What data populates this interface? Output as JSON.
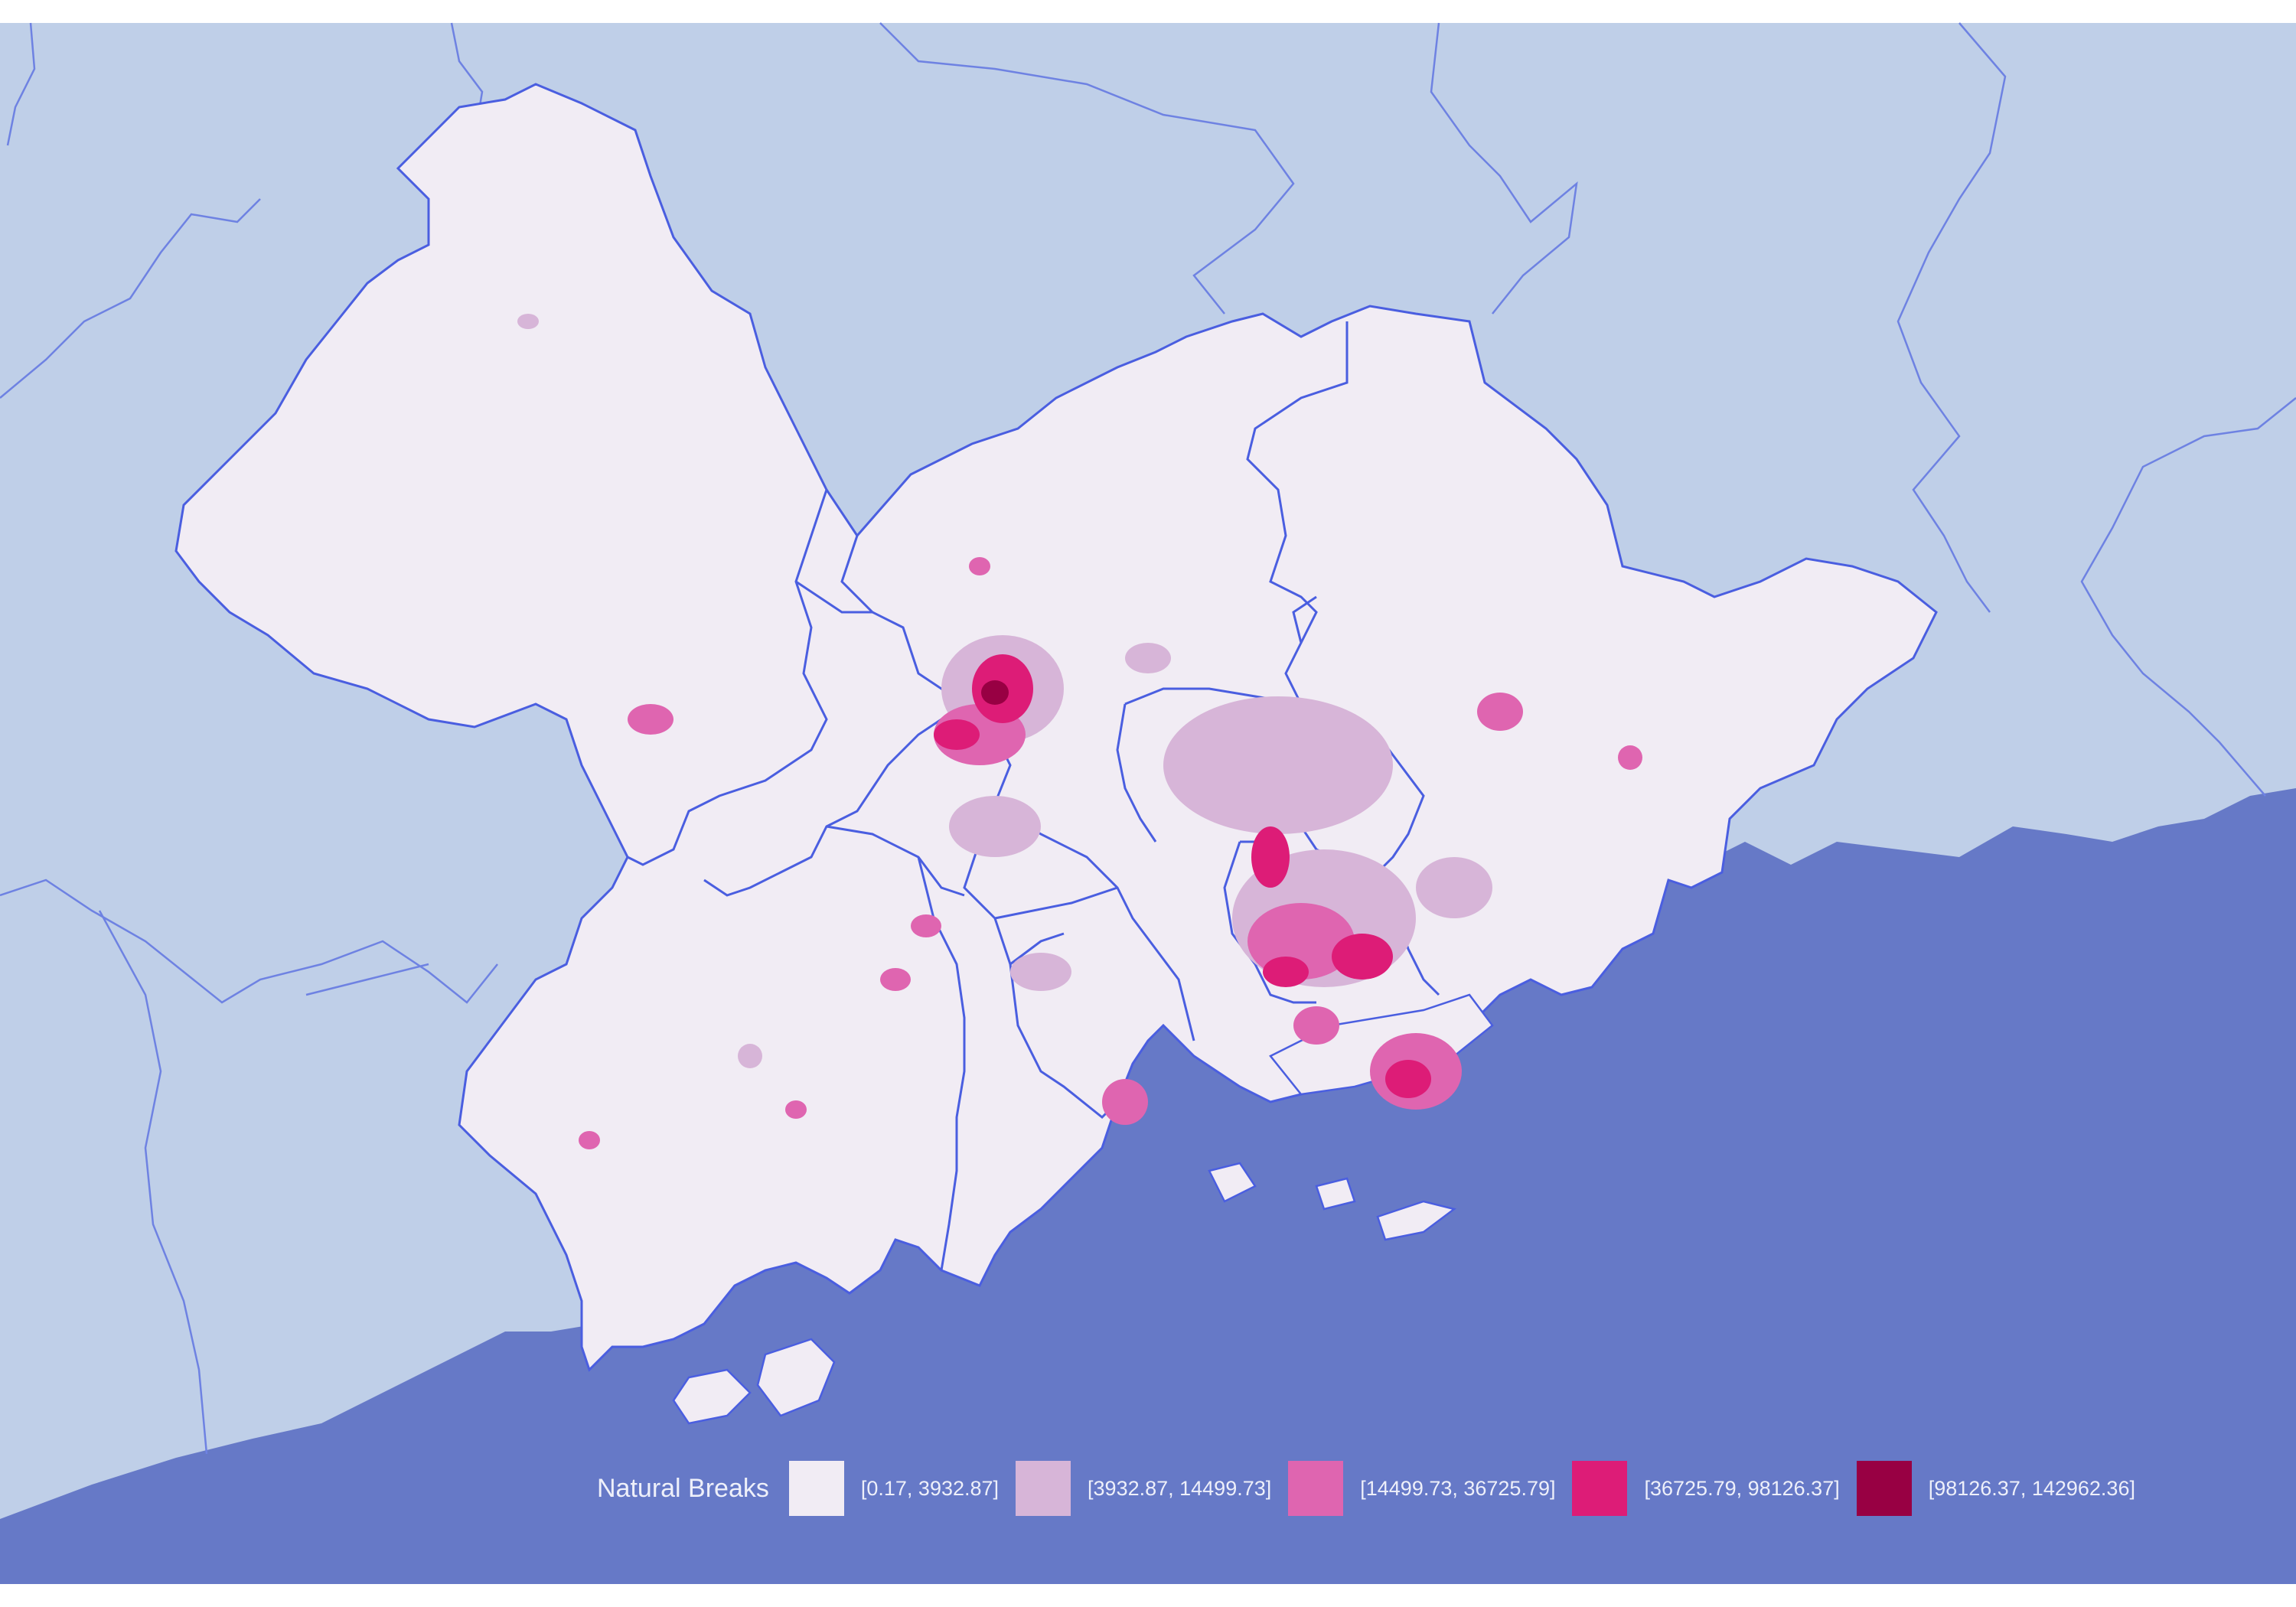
{
  "map": {
    "colors": {
      "land_outside": "#bfcfe8",
      "sea": "#6679c7",
      "study_area": "#f1ecf4",
      "boundary": "#4a5ee0",
      "outside_boundary": "#6e82e2"
    }
  },
  "legend": {
    "title": "Natural Breaks",
    "items": [
      {
        "label": "[0.17, 3932.87]",
        "color": "#f1ecf4"
      },
      {
        "label": "[3932.87, 14499.73]",
        "color": "#d7b5d8"
      },
      {
        "label": "[14499.73, 36725.79]",
        "color": "#df65b0"
      },
      {
        "label": "[36725.79, 98126.37]",
        "color": "#dd1c77"
      },
      {
        "label": "[98126.37, 142962.36]",
        "color": "#980043"
      }
    ]
  }
}
